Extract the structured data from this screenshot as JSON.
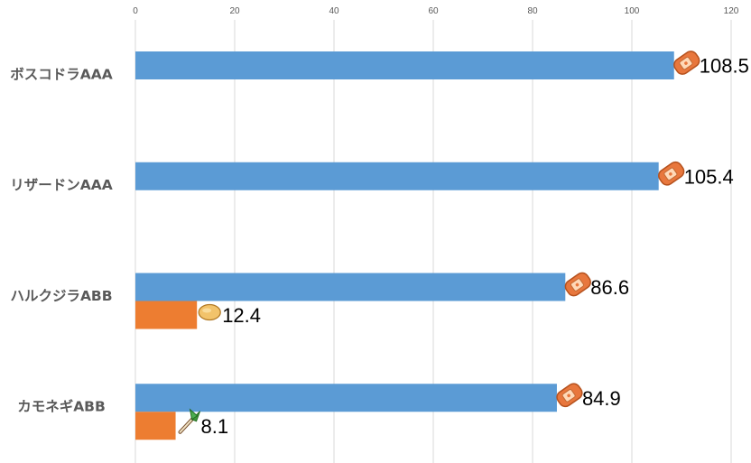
{
  "chart_data": {
    "type": "bar",
    "orientation": "horizontal",
    "categories": [
      "ボスコドラAAA",
      "リザードンAAA",
      "ハルクジラABB",
      "カモネギABB"
    ],
    "series": [
      {
        "values": [
          108.5,
          105.4,
          86.6,
          84.9
        ],
        "color": "#5b9bd5",
        "icons": [
          "tofu-icon",
          "tofu-icon",
          "tofu-icon",
          "tofu-icon"
        ]
      },
      {
        "values": [
          null,
          null,
          12.4,
          8.1
        ],
        "color": "#ed7d31",
        "icons": [
          null,
          null,
          "potato-icon",
          "leek-icon"
        ]
      }
    ],
    "data_labels": [
      [
        "108.5",
        "105.4",
        "86.6",
        "84.9"
      ],
      [
        null,
        null,
        "12.4",
        "8.1"
      ]
    ],
    "xlim": [
      0,
      120
    ],
    "xticks": [
      "0",
      "20",
      "40",
      "60",
      "80",
      "100",
      "120"
    ],
    "x_axis_position": "top",
    "grid": true,
    "legend": false
  }
}
